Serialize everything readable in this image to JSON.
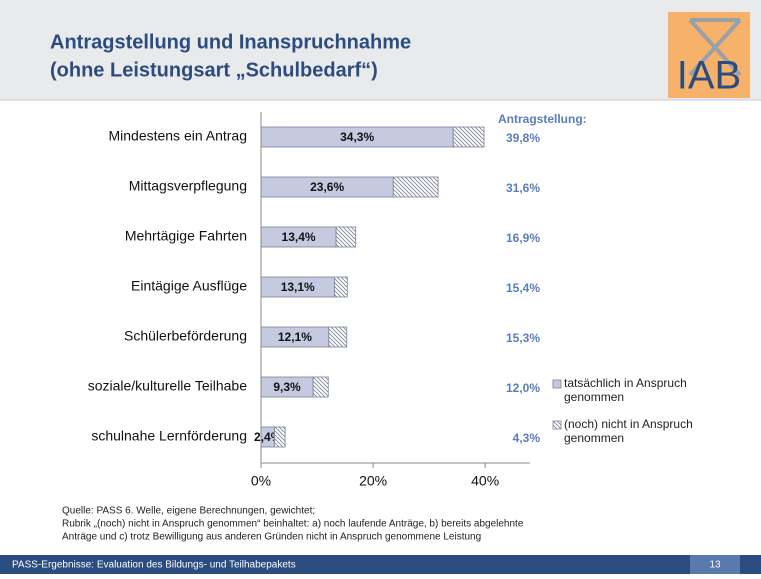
{
  "header": {
    "title_line1": "Antragstellung und Inanspruchnahme",
    "title_line2": "(ohne Leistungsart „Schulbedarf“)",
    "logo": "IAB"
  },
  "chart_data": {
    "type": "bar",
    "orientation": "horizontal",
    "stacked": true,
    "categories": [
      "Mindestens ein Antrag",
      "Mittagsverpflegung",
      "Mehrtägige Fahrten",
      "Eintägige Ausflüge",
      "Schülerbeförderung",
      "soziale/kulturelle Teilhabe",
      "schulnahe Lernförderung"
    ],
    "series": [
      {
        "name": "tatsächlich in Anspruch genommen",
        "color": "#c5cae0",
        "values": [
          34.3,
          23.6,
          13.4,
          13.1,
          12.1,
          9.3,
          2.4
        ],
        "value_labels": [
          "34,3%",
          "23,6%",
          "13,4%",
          "13,1%",
          "12,1%",
          "9,3%",
          "2,4%"
        ]
      },
      {
        "name": "(noch) nicht in Anspruch genommen",
        "color": "#8a90a8",
        "pattern": "hatch",
        "values": [
          5.5,
          8.0,
          3.5,
          2.3,
          3.2,
          2.7,
          1.9
        ]
      }
    ],
    "total_header": "Antragstellung:",
    "total_labels": [
      "39,8%",
      "31,6%",
      "16,9%",
      "15,4%",
      "15,3%",
      "12,0%",
      "4,3%"
    ],
    "xlim": [
      0,
      48
    ],
    "xticks": [
      {
        "value": 0,
        "label": "0%"
      },
      {
        "value": 20,
        "label": "20%"
      },
      {
        "value": 40,
        "label": "40%"
      }
    ],
    "legend": "right"
  },
  "notes": [
    "Quelle: PASS 6. Welle, eigene Berechnungen, gewichtet;",
    "Rubrik „(noch) nicht in Anspruch genommen“ beinhaltet: a) noch laufende Anträge, b) bereits abgelehnte",
    "Anträge  und c) trotz Bewilligung aus anderen Gründen nicht in Anspruch genommene Leistung"
  ],
  "footer": {
    "text": "PASS-Ergebnisse: Evaluation des Bildungs- und Teilhabepakets",
    "page": 13
  }
}
